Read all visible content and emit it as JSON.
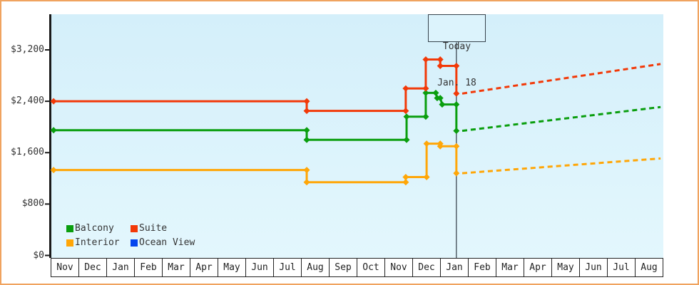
{
  "chart_data": {
    "type": "line",
    "title": "",
    "description": "Cruise cabin price history by category; solid stepped lines are past prices, dashed lines are projected prices after the Today marker",
    "grid": false,
    "legend_position": "bottom-left",
    "ylim": [
      0,
      3200
    ],
    "y_ticks": [
      {
        "label": "$0",
        "value": 0
      },
      {
        "label": "$800",
        "value": 800
      },
      {
        "label": "$1,600",
        "value": 1600
      },
      {
        "label": "$2,400",
        "value": 2400
      },
      {
        "label": "$3,200",
        "value": 3200
      }
    ],
    "x_months": [
      "Nov",
      "Dec",
      "Jan",
      "Feb",
      "Mar",
      "Apr",
      "May",
      "Jun",
      "Jul",
      "Aug",
      "Sep",
      "Oct",
      "Nov",
      "Dec",
      "Jan",
      "Feb",
      "Mar",
      "Apr",
      "May",
      "Jun",
      "Jul",
      "Aug"
    ],
    "today": {
      "line1": "Today",
      "line2": "Jan. 18",
      "month_index": 14.56
    },
    "series": [
      {
        "name": "Balcony",
        "color": "#0a9e0e",
        "points": [
          [
            0.08,
            1950
          ],
          [
            9.18,
            1950
          ],
          [
            9.18,
            1800
          ],
          [
            12.77,
            1800
          ],
          [
            12.77,
            2160
          ],
          [
            13.46,
            2160
          ],
          [
            13.46,
            2530
          ],
          [
            13.82,
            2530
          ],
          [
            13.87,
            2450
          ],
          [
            13.98,
            2450
          ],
          [
            14.05,
            2350
          ],
          [
            14.56,
            2350
          ],
          [
            14.56,
            1940
          ]
        ],
        "forecast": [
          [
            14.77,
            1940
          ],
          [
            21.9,
            2310
          ]
        ]
      },
      {
        "name": "Suite",
        "color": "#f23908",
        "points": [
          [
            0.08,
            2400
          ],
          [
            9.18,
            2400
          ],
          [
            9.18,
            2250
          ],
          [
            12.74,
            2250
          ],
          [
            12.74,
            2600
          ],
          [
            13.46,
            2600
          ],
          [
            13.46,
            3050
          ],
          [
            13.98,
            3050
          ],
          [
            13.98,
            2950
          ],
          [
            14.56,
            2950
          ],
          [
            14.56,
            2520
          ]
        ],
        "forecast": [
          [
            14.77,
            2520
          ],
          [
            21.9,
            2980
          ]
        ]
      },
      {
        "name": "Interior",
        "color": "#ffa607",
        "points": [
          [
            0.08,
            1330
          ],
          [
            9.18,
            1330
          ],
          [
            9.18,
            1140
          ],
          [
            12.74,
            1140
          ],
          [
            12.74,
            1220
          ],
          [
            13.49,
            1220
          ],
          [
            13.49,
            1740
          ],
          [
            13.98,
            1740
          ],
          [
            13.98,
            1700
          ],
          [
            14.56,
            1700
          ],
          [
            14.56,
            1280
          ]
        ],
        "forecast": [
          [
            14.77,
            1280
          ],
          [
            21.9,
            1510
          ]
        ]
      },
      {
        "name": "Ocean View",
        "color": "#0345ee",
        "points": [],
        "forecast": []
      }
    ],
    "legend": [
      {
        "label": "Balcony",
        "color": "#0a9e0e"
      },
      {
        "label": "Suite",
        "color": "#f23908"
      },
      {
        "label": "Interior",
        "color": "#ffa607"
      },
      {
        "label": "Ocean View",
        "color": "#0345ee"
      }
    ],
    "colors": {
      "frame": "#f0a35f",
      "axis": "#1a1a1a",
      "today_line": "#3d4852",
      "plot_bg_top": "#d4effa",
      "plot_bg_bottom": "#e3f7fd",
      "text": "#333333"
    }
  }
}
